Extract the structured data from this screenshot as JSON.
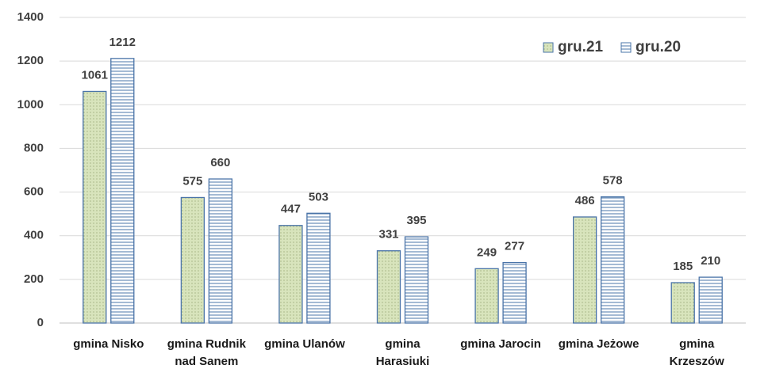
{
  "chart_data": {
    "type": "bar",
    "categories": [
      "gmina Nisko",
      "gmina Rudnik nad Sanem",
      "gmina Ulanów",
      "gmina Harasiuki",
      "gmina Jarocin",
      "gmina Jeżowe",
      "gmina Krzeszów"
    ],
    "series": [
      {
        "name": "gru.21",
        "color": "#d8e4bc",
        "values": [
          1061,
          575,
          447,
          331,
          249,
          486,
          185
        ]
      },
      {
        "name": "gru.20",
        "color": "#ffffff",
        "values": [
          1212,
          660,
          503,
          395,
          277,
          578,
          210
        ]
      }
    ],
    "ylim": [
      0,
      1400
    ],
    "yticks": [
      0,
      200,
      400,
      600,
      800,
      1000,
      1200,
      1400
    ],
    "grid": true,
    "legend": "top-right"
  }
}
